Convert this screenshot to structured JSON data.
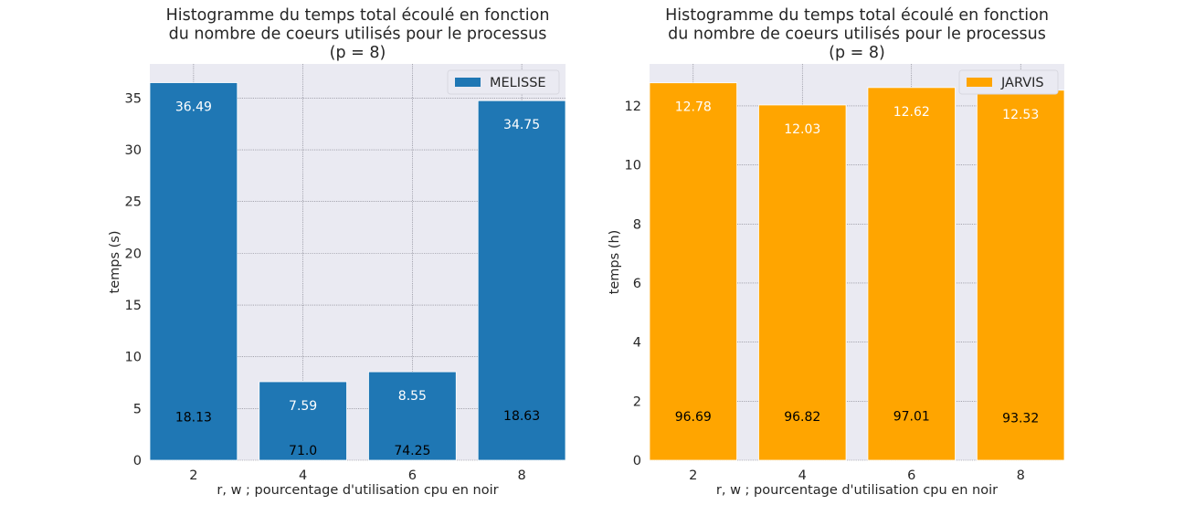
{
  "chart_data": [
    {
      "type": "bar",
      "title": [
        "Histogramme du temps total écoulé en fonction",
        "du nombre de coeurs utilisés pour le processus",
        "(p = 8)"
      ],
      "xlabel": "r, w ; pourcentage d'utilisation cpu en noir",
      "ylabel": "temps (s)",
      "categories": [
        "2",
        "4",
        "6",
        "8"
      ],
      "series": [
        {
          "name": "MELISSE",
          "color": "#1f77b4",
          "values": [
            36.49,
            7.59,
            8.55,
            34.75
          ],
          "labels": [
            "36.49",
            "7.59",
            "8.55",
            "34.75"
          ]
        }
      ],
      "cpu_usage": [
        18.13,
        71.0,
        74.25,
        18.63
      ],
      "cpu_labels": [
        "18.13",
        "71.0",
        "74.25",
        "18.63"
      ],
      "ylim": [
        0,
        38.3
      ],
      "yticks": [
        0,
        5,
        10,
        15,
        20,
        25,
        30,
        35
      ],
      "grid": true,
      "legend": "top-right",
      "background": "#eaeaf2"
    },
    {
      "type": "bar",
      "title": [
        "Histogramme du temps total écoulé en fonction",
        "du nombre de coeurs utilisés pour le processus",
        "(p = 8)"
      ],
      "xlabel": "r, w ; pourcentage d'utilisation cpu en noir",
      "ylabel": "temps (h)",
      "categories": [
        "2",
        "4",
        "6",
        "8"
      ],
      "series": [
        {
          "name": "JARVIS",
          "color": "#ffa500",
          "values": [
            12.78,
            12.03,
            12.62,
            12.53
          ],
          "labels": [
            "12.78",
            "12.03",
            "12.62",
            "12.53"
          ]
        }
      ],
      "cpu_usage": [
        96.69,
        96.82,
        97.01,
        93.32
      ],
      "cpu_labels": [
        "96.69",
        "96.82",
        "97.01",
        "93.32"
      ],
      "ylim": [
        0,
        13.42
      ],
      "yticks": [
        0,
        2,
        4,
        6,
        8,
        10,
        12
      ],
      "grid": true,
      "legend": "top-right",
      "background": "#eaeaf2"
    }
  ]
}
